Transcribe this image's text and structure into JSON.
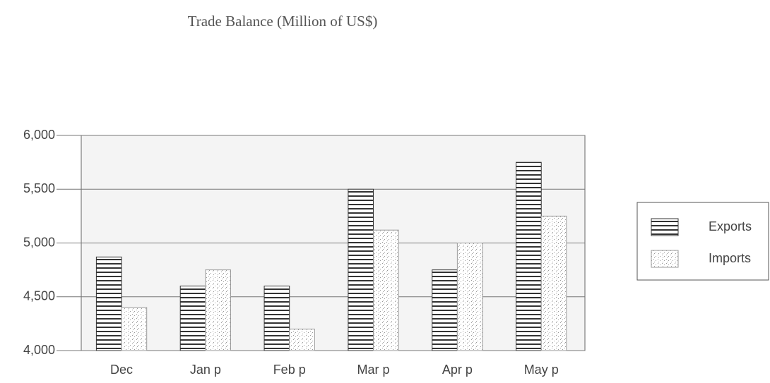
{
  "chart_data": {
    "type": "bar",
    "title": "Trade  Balance  (Million of US$)",
    "categories": [
      "Dec",
      "Jan p",
      "Feb p",
      "Mar p",
      "Apr p",
      "May p"
    ],
    "series": [
      {
        "name": "Exports",
        "color": "#333333",
        "values": [
          4870,
          4600,
          4600,
          5500,
          4750,
          5750
        ]
      },
      {
        "name": "Imports",
        "color": "#999999",
        "values": [
          4400,
          4750,
          4200,
          5120,
          5000,
          5250
        ]
      }
    ],
    "ylim": [
      4000,
      6000
    ],
    "yticks": [
      {
        "value": 4000,
        "label": "4,000"
      },
      {
        "value": 4500,
        "label": "4,500"
      },
      {
        "value": 5000,
        "label": "5,000"
      },
      {
        "value": 5500,
        "label": "5,500"
      },
      {
        "value": 6000,
        "label": "6,000"
      }
    ],
    "grid": true,
    "legend": "right"
  }
}
